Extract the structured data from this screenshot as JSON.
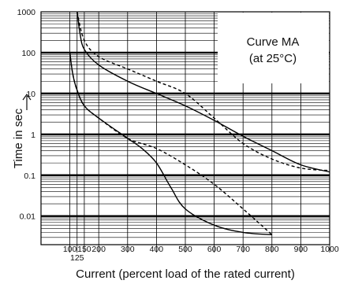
{
  "chart_data": {
    "type": "line",
    "annotation_lines": [
      "Curve MA",
      "(at 25°C)"
    ],
    "xlabel": "Current (percent load of the rated current)",
    "ylabel": "Time in sec",
    "xlim": [
      0,
      1000
    ],
    "ylim": [
      0.002,
      1000
    ],
    "y_scale": "log",
    "x_ticks": [
      {
        "value": 100,
        "label": "100"
      },
      {
        "value": 125,
        "label": "125"
      },
      {
        "value": 150,
        "label": "150"
      },
      {
        "value": 200,
        "label": "200"
      },
      {
        "value": 300,
        "label": "300"
      },
      {
        "value": 400,
        "label": "400"
      },
      {
        "value": 500,
        "label": "500"
      },
      {
        "value": 600,
        "label": "600"
      },
      {
        "value": 700,
        "label": "700"
      },
      {
        "value": 800,
        "label": "800"
      },
      {
        "value": 900,
        "label": "900"
      },
      {
        "value": 1000,
        "label": "1000"
      }
    ],
    "y_ticks": [
      {
        "value": 0.01,
        "label": "0.01"
      },
      {
        "value": 0.1,
        "label": "0.1"
      },
      {
        "value": 1,
        "label": "1"
      },
      {
        "value": 10,
        "label": "10"
      },
      {
        "value": 100,
        "label": "100"
      },
      {
        "value": 1000,
        "label": "1000"
      }
    ],
    "grid": true,
    "series": [
      {
        "style": "solid",
        "x": [
          125,
          135,
          150,
          200,
          300,
          400,
          500,
          600,
          700,
          800,
          900,
          1000
        ],
        "y": [
          1000,
          300,
          120,
          50,
          20,
          10,
          5,
          2.2,
          0.9,
          0.4,
          0.18,
          0.12
        ]
      },
      {
        "style": "dashed",
        "x": [
          125,
          150,
          200,
          300,
          400,
          500,
          600,
          700,
          800,
          900,
          1000
        ],
        "y": [
          1000,
          200,
          80,
          40,
          20,
          10,
          2.5,
          0.6,
          0.25,
          0.15,
          0.13
        ]
      },
      {
        "style": "solid",
        "x": [
          100,
          110,
          125,
          150,
          200,
          300,
          350,
          400,
          450,
          500,
          600,
          700,
          800
        ],
        "y": [
          100,
          30,
          12,
          5,
          2.5,
          0.8,
          0.45,
          0.2,
          0.05,
          0.015,
          0.006,
          0.004,
          0.0035
        ]
      },
      {
        "style": "dashed",
        "x": [
          100,
          110,
          125,
          150,
          200,
          300,
          400,
          500,
          600,
          700,
          800
        ],
        "y": [
          100,
          30,
          12,
          5,
          2.5,
          0.8,
          0.45,
          0.18,
          0.06,
          0.015,
          0.0035
        ]
      }
    ]
  }
}
